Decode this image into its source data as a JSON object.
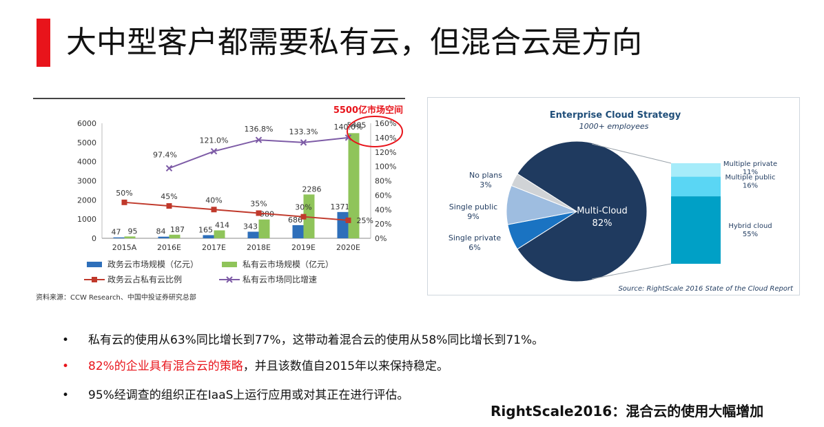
{
  "slide": {
    "title": "大中型客户都需要私有云，但混合云是方向",
    "accent_color": "#e8141b",
    "footer": "RightScale2016：混合云的使用大幅增加"
  },
  "bullets": [
    {
      "marker": "•",
      "text": "私有云的使用从63%同比增长到77%，这带动着混合云的使用从58%同比增长到71%。",
      "highlight": "",
      "rest": ""
    },
    {
      "marker": "•",
      "text": "",
      "highlight": "82%的企业具有混合云的策略",
      "rest": "，并且该数值自2015年以来保持稳定。"
    },
    {
      "marker": "•",
      "text": "95%经调查的组织正在IaaS上运行应用或对其正在进行评估。",
      "highlight": "",
      "rest": ""
    }
  ],
  "chart_data": [
    {
      "type": "bar",
      "annotation": "5500亿市场空间",
      "source": "资料来源：CCW Research、中国中投证券研究总部",
      "categories": [
        "2015A",
        "2016E",
        "2017E",
        "2018E",
        "2019E",
        "2020E"
      ],
      "y_ticks": [
        "0",
        "1000",
        "2000",
        "3000",
        "4000",
        "5000",
        "6000"
      ],
      "y2_ticks": [
        "0%",
        "20%",
        "40%",
        "60%",
        "80%",
        "100%",
        "120%",
        "140%",
        "160%"
      ],
      "ylim": [
        0,
        6000
      ],
      "y2lim": [
        0,
        1.6
      ],
      "series": [
        {
          "name": "政务云市场规模（亿元）",
          "kind": "bar",
          "axis": "left",
          "color": "#2e6fba",
          "values": [
            47,
            84,
            165,
            343,
            686,
            1371
          ],
          "labels": [
            "47",
            "84",
            "165",
            "343",
            "686",
            "1371"
          ]
        },
        {
          "name": "私有云市场规模（亿元）",
          "kind": "bar",
          "axis": "left",
          "color": "#8fc45a",
          "values": [
            95,
            187,
            414,
            980,
            2286,
            5485
          ],
          "labels": [
            "95",
            "187",
            "414",
            "980",
            "2286",
            "5485"
          ]
        },
        {
          "name": "政务云占私有云比例",
          "kind": "line",
          "axis": "right",
          "color": "#c0392b",
          "marker": "square",
          "values": [
            0.5,
            0.45,
            0.4,
            0.35,
            0.3,
            0.25
          ],
          "labels": [
            "50%",
            "45%",
            "40%",
            "35%",
            "30%",
            "25%"
          ]
        },
        {
          "name": "私有云市场同比增速",
          "kind": "line",
          "axis": "right",
          "color": "#7d5ba6",
          "marker": "x",
          "values": [
            null,
            0.974,
            1.21,
            1.368,
            1.333,
            1.4
          ],
          "labels": [
            "",
            "97.4%",
            "121.0%",
            "136.8%",
            "133.3%",
            "140.0%"
          ]
        }
      ]
    },
    {
      "type": "pie",
      "title": "Enterprise Cloud Strategy",
      "subtitle": "1000+ employees",
      "source": "Source: RightScale 2016 State of the Cloud Report",
      "slices": [
        {
          "label": "Multi-Cloud",
          "value": 82,
          "value_label": "82%",
          "color": "#1f3a5f"
        },
        {
          "label": "Single private",
          "value": 6,
          "value_label": "6%",
          "color": "#1a73c2"
        },
        {
          "label": "Single public",
          "value": 9,
          "value_label": "9%",
          "color": "#9ebde0"
        },
        {
          "label": "No plans",
          "value": 3,
          "value_label": "3%",
          "color": "#d0d3d6"
        }
      ],
      "breakdown": [
        {
          "label": "Multiple private",
          "value": 11,
          "value_label": "11%",
          "color": "#a6ecfa"
        },
        {
          "label": "Multiple public",
          "value": 16,
          "value_label": "16%",
          "color": "#5ad6f4"
        },
        {
          "label": "Hybrid cloud",
          "value": 55,
          "value_label": "55%",
          "color": "#00a0c6"
        }
      ]
    }
  ]
}
